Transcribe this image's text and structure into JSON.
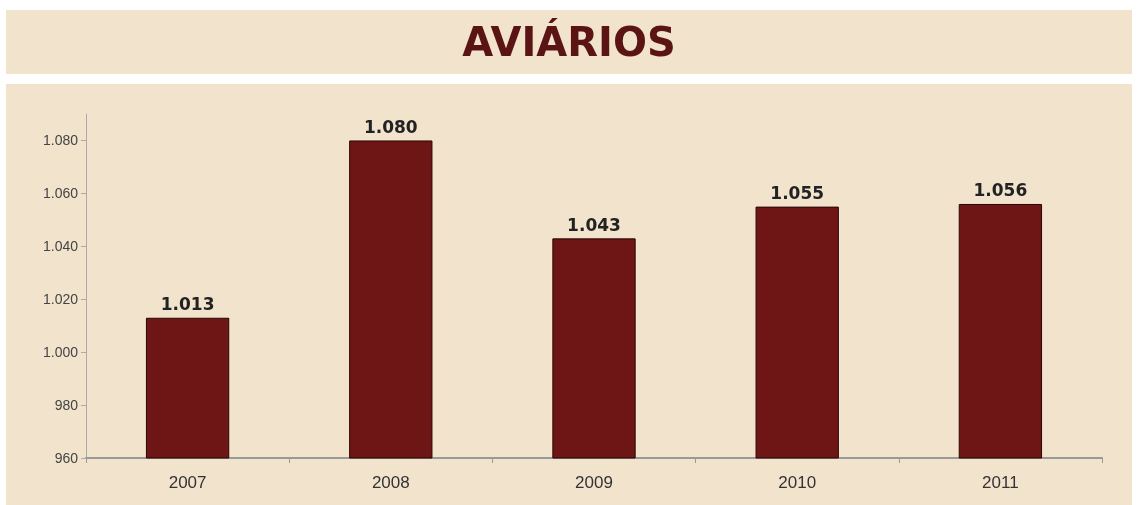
{
  "chart_data": {
    "type": "bar",
    "title": "AVIÁRIOS",
    "categories": [
      "2007",
      "2008",
      "2009",
      "2010",
      "2011"
    ],
    "values": [
      1013,
      1080,
      1043,
      1055,
      1056
    ],
    "value_labels": [
      "1.013",
      "1.080",
      "1.043",
      "1.055",
      "1.056"
    ],
    "color": "#6e1515",
    "ylim": [
      960,
      1090
    ],
    "yticks": [
      {
        "value": 960,
        "label": "960"
      },
      {
        "value": 980,
        "label": "980"
      },
      {
        "value": 1000,
        "label": "1.000"
      },
      {
        "value": 1020,
        "label": "1.020"
      },
      {
        "value": 1040,
        "label": "1.040"
      },
      {
        "value": 1060,
        "label": "1.060"
      },
      {
        "value": 1080,
        "label": "1.080"
      }
    ],
    "grid": false
  }
}
